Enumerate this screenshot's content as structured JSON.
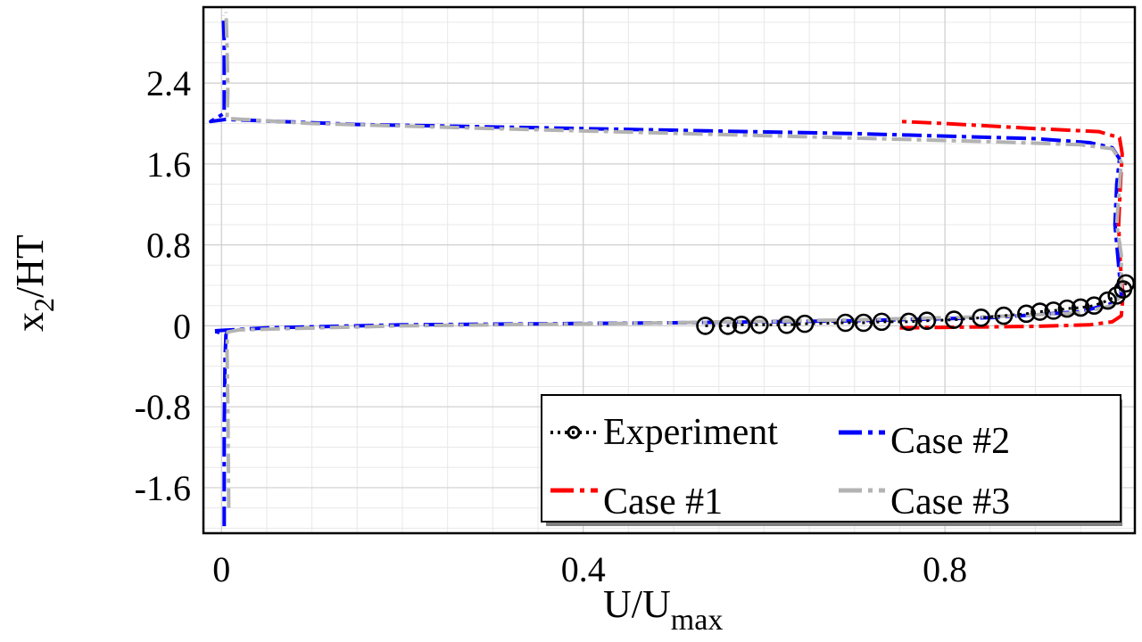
{
  "chart_data": {
    "type": "line",
    "title": "",
    "xlabel": "U/U",
    "xlabel_sub": "max",
    "ylabel": "x",
    "ylabel_sub": "2",
    "ylabel_suffix": "/HT",
    "xlim": [
      -0.02,
      1.01
    ],
    "ylim": [
      -2.05,
      3.15
    ],
    "xticks": [
      0,
      0.4,
      0.8
    ],
    "xtick_labels": [
      "0",
      "0.4",
      "0.8"
    ],
    "yticks": [
      -1.6,
      -0.8,
      0,
      0.8,
      1.6,
      2.4
    ],
    "ytick_labels": [
      "-1.6",
      "-0.8",
      "0",
      "0.8",
      "1.6",
      "2.4"
    ],
    "grid": true,
    "legend_position": "bottom-right",
    "series": [
      {
        "name": "Experiment",
        "color": "#000000",
        "style": "dotted-circle-markers",
        "points": [
          [
            0.535,
            0.0
          ],
          [
            0.56,
            0.0
          ],
          [
            0.575,
            0.01
          ],
          [
            0.595,
            0.01
          ],
          [
            0.625,
            0.01
          ],
          [
            0.645,
            0.02
          ],
          [
            0.69,
            0.03
          ],
          [
            0.71,
            0.03
          ],
          [
            0.73,
            0.04
          ],
          [
            0.76,
            0.04
          ],
          [
            0.78,
            0.05
          ],
          [
            0.81,
            0.06
          ],
          [
            0.84,
            0.08
          ],
          [
            0.865,
            0.1
          ],
          [
            0.89,
            0.12
          ],
          [
            0.905,
            0.14
          ],
          [
            0.92,
            0.15
          ],
          [
            0.935,
            0.17
          ],
          [
            0.95,
            0.18
          ],
          [
            0.965,
            0.2
          ],
          [
            0.98,
            0.25
          ],
          [
            0.99,
            0.3
          ],
          [
            0.997,
            0.36
          ],
          [
            1.0,
            0.42
          ]
        ]
      },
      {
        "name": "Case #1",
        "color": "#ff0000",
        "style": "dash-dot",
        "points": [
          [
            0.75,
            -0.02
          ],
          [
            0.8,
            -0.015
          ],
          [
            0.9,
            -0.005
          ],
          [
            0.96,
            0.01
          ],
          [
            0.985,
            0.04
          ],
          [
            0.995,
            0.1
          ],
          [
            0.997,
            0.3
          ],
          [
            0.994,
            0.6
          ],
          [
            0.992,
            1.0
          ],
          [
            0.994,
            1.4
          ],
          [
            0.996,
            1.7
          ],
          [
            0.993,
            1.86
          ],
          [
            0.97,
            1.92
          ],
          [
            0.9,
            1.95
          ],
          [
            0.8,
            2.0
          ],
          [
            0.75,
            2.02
          ]
        ]
      },
      {
        "name": "Case #2",
        "color": "#0000ff",
        "style": "dash-dot",
        "points": [
          [
            0.003,
            -1.98
          ],
          [
            0.003,
            -1.0
          ],
          [
            0.004,
            -0.3
          ],
          [
            0.005,
            -0.08
          ],
          [
            -0.01,
            -0.05
          ],
          [
            0.05,
            -0.02
          ],
          [
            0.2,
            0.01
          ],
          [
            0.5,
            0.03
          ],
          [
            0.7,
            0.05
          ],
          [
            0.85,
            0.08
          ],
          [
            0.95,
            0.14
          ],
          [
            0.985,
            0.22
          ],
          [
            0.995,
            0.3
          ],
          [
            0.992,
            0.6
          ],
          [
            0.988,
            1.0
          ],
          [
            0.99,
            1.4
          ],
          [
            0.993,
            1.65
          ],
          [
            0.985,
            1.76
          ],
          [
            0.96,
            1.81
          ],
          [
            0.9,
            1.85
          ],
          [
            0.7,
            1.9
          ],
          [
            0.4,
            1.95
          ],
          [
            0.15,
            1.99
          ],
          [
            0.005,
            2.04
          ],
          [
            -0.012,
            2.02
          ],
          [
            0.003,
            2.1
          ],
          [
            0.003,
            2.8
          ],
          [
            0.002,
            3.07
          ]
        ]
      },
      {
        "name": "Case #3",
        "color": "#b3b3b3",
        "style": "dash-dot",
        "points": [
          [
            0.008,
            -1.8
          ],
          [
            0.007,
            -0.8
          ],
          [
            0.006,
            -0.2
          ],
          [
            0.007,
            -0.06
          ],
          [
            0.02,
            -0.04
          ],
          [
            0.2,
            0.0
          ],
          [
            0.5,
            0.03
          ],
          [
            0.7,
            0.06
          ],
          [
            0.85,
            0.09
          ],
          [
            0.95,
            0.13
          ],
          [
            0.985,
            0.2
          ],
          [
            0.995,
            0.3
          ],
          [
            0.995,
            0.7
          ],
          [
            0.99,
            1.0
          ],
          [
            0.993,
            1.4
          ],
          [
            0.995,
            1.62
          ],
          [
            0.985,
            1.75
          ],
          [
            0.95,
            1.79
          ],
          [
            0.85,
            1.82
          ],
          [
            0.6,
            1.88
          ],
          [
            0.3,
            1.95
          ],
          [
            0.1,
            2.0
          ],
          [
            0.006,
            2.05
          ],
          [
            0.007,
            2.3
          ],
          [
            0.006,
            2.8
          ],
          [
            0.005,
            3.1
          ]
        ]
      }
    ]
  }
}
